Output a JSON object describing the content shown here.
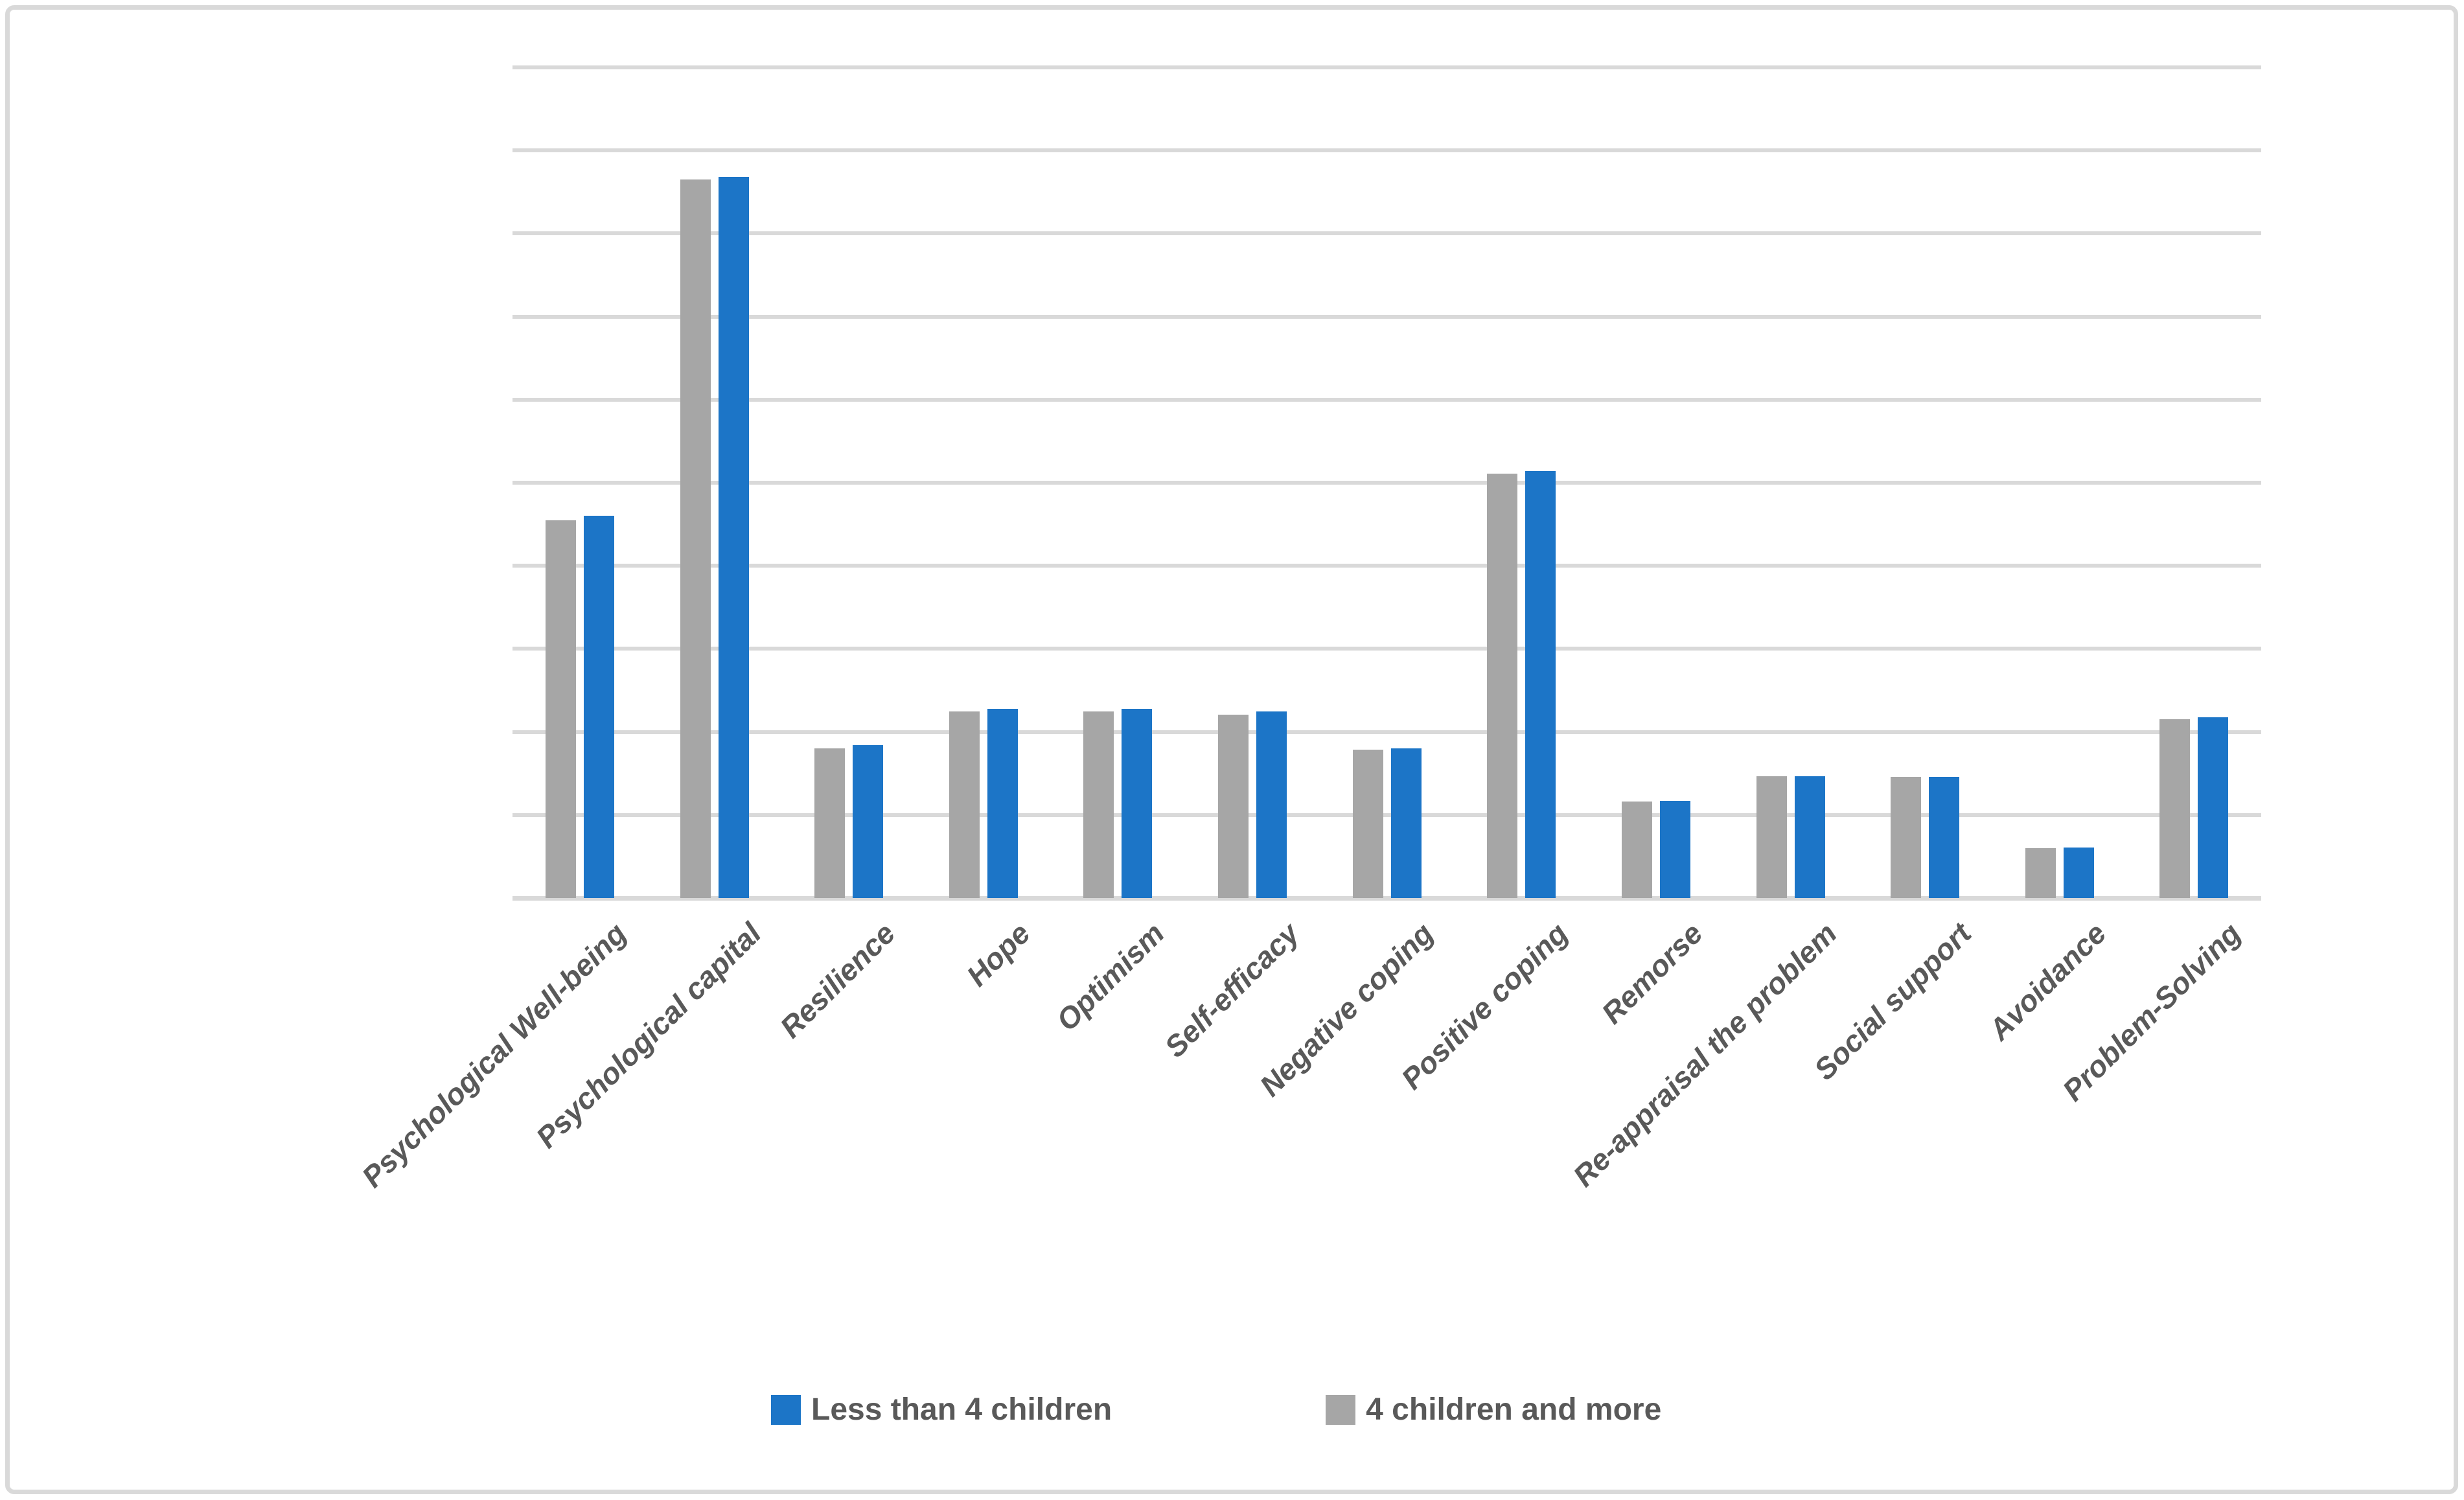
{
  "chart_data": {
    "type": "bar",
    "title": "",
    "xlabel": "",
    "ylabel": "",
    "categories": [
      "Psychological Well-being",
      "Psychological capital",
      "Resilience",
      "Hope",
      "Optimism",
      "Self-efficacy",
      "Negative coping",
      "Positive coping",
      "Remorse",
      "Re-appraisal the problem",
      "Social support",
      "Avoidance",
      "Problem-Solving"
    ],
    "series": [
      {
        "name": "Less than 4 children",
        "color": "#1c75c7",
        "values": [
          4.6,
          8.68,
          1.84,
          2.28,
          2.28,
          2.25,
          1.8,
          5.14,
          1.17,
          1.47,
          1.46,
          0.61,
          2.18
        ]
      },
      {
        "name": "4 children and more",
        "color": "#a6a6a6",
        "values": [
          4.55,
          8.65,
          1.8,
          2.25,
          2.25,
          2.21,
          1.79,
          5.11,
          1.16,
          1.47,
          1.46,
          0.6,
          2.15
        ]
      }
    ],
    "bar_order_in_group": [
      "4 children and more",
      "Less than 4 children"
    ],
    "legend_order": [
      "Less than 4 children",
      "4 children and more"
    ],
    "legend_position": "bottom",
    "grid": true,
    "gridline_step": 1,
    "ylim": [
      0,
      10
    ],
    "y_tick_labels_visible": false
  },
  "styles": {
    "gridline_color": "#d9d9d9",
    "axis_line_color": "#d9d9d9",
    "frame_border_color": "#d9d9d9",
    "label_text_color": "#595959",
    "legend_text_color": "#595959",
    "background_color": "#ffffff"
  }
}
